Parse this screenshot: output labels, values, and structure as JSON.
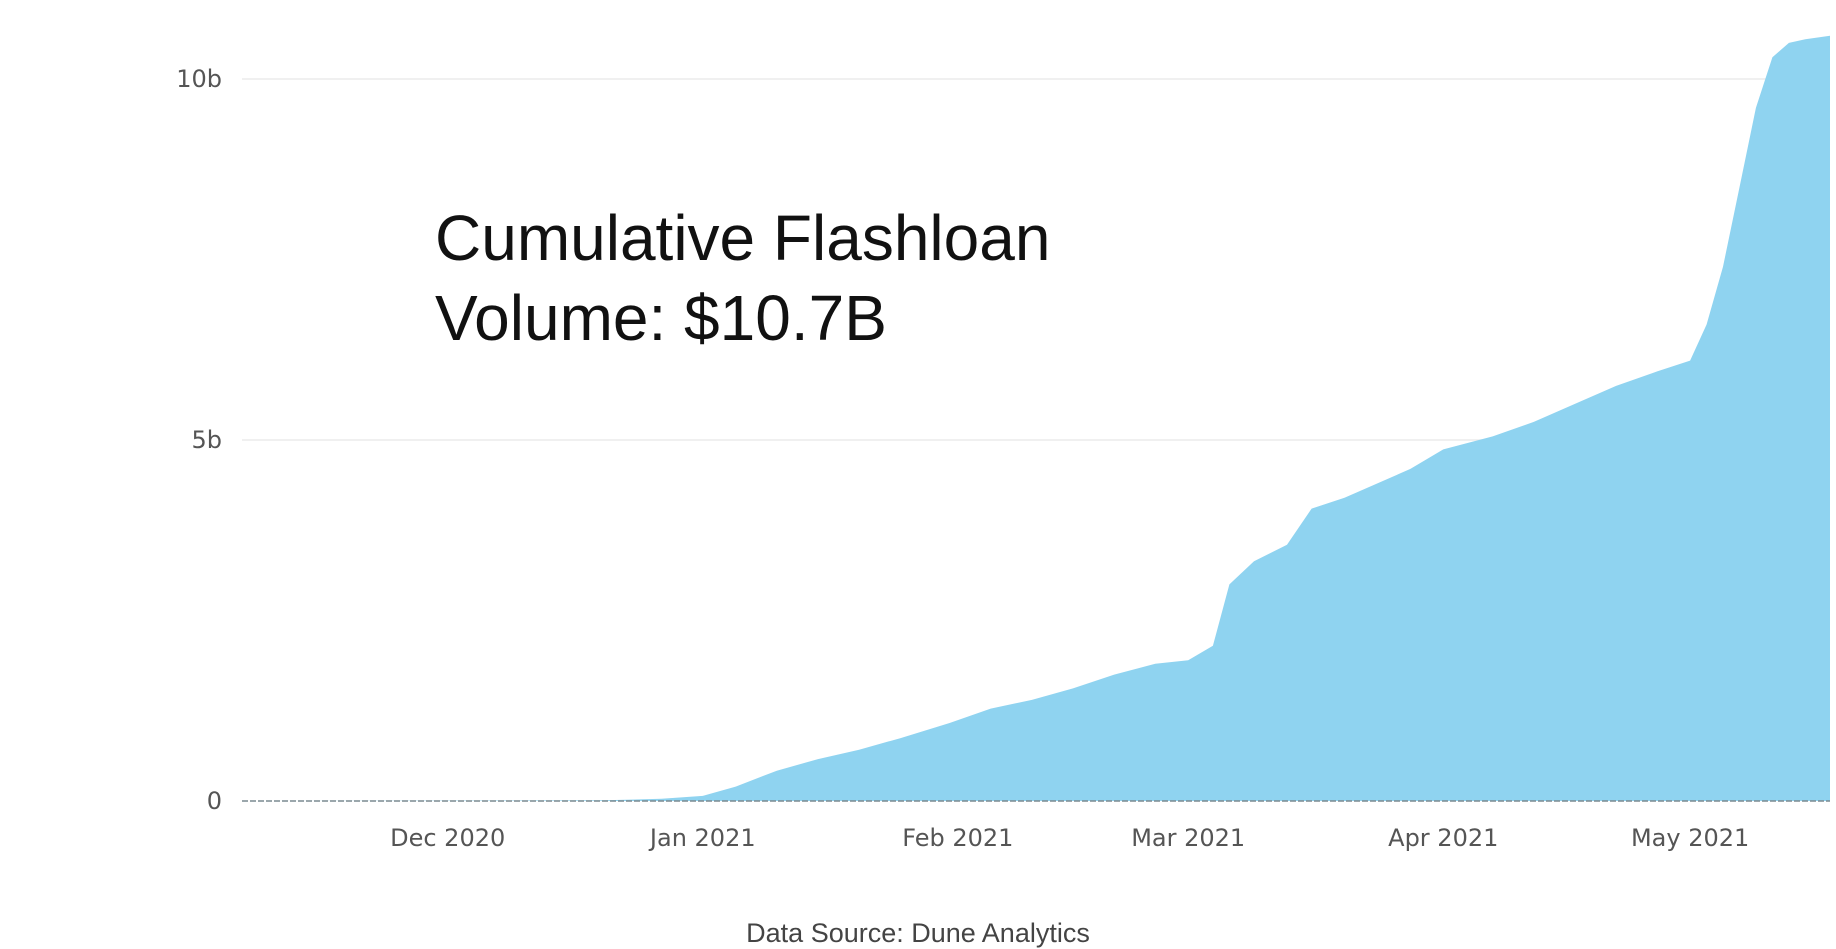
{
  "chart_data": {
    "type": "area",
    "title": "",
    "xlabel": "",
    "ylabel": "",
    "annotation_lines": [
      "Cumulative Flashloan",
      "Volume: $10.7B"
    ],
    "source_note": "Data Source: Dune Analytics",
    "x_ticks": [
      {
        "date": "2020-12-01",
        "label": "Dec 2020"
      },
      {
        "date": "2021-01-01",
        "label": "Jan 2021"
      },
      {
        "date": "2021-02-01",
        "label": "Feb 2021"
      },
      {
        "date": "2021-03-01",
        "label": "Mar 2021"
      },
      {
        "date": "2021-04-01",
        "label": "Apr 2021"
      },
      {
        "date": "2021-05-01",
        "label": "May 2021"
      }
    ],
    "y_ticks": [
      {
        "value": 0,
        "label": "0"
      },
      {
        "value": 5000000000,
        "label": "5b"
      },
      {
        "value": 10000000000,
        "label": "10b"
      }
    ],
    "xlim": [
      "2020-11-06",
      "2021-05-18"
    ],
    "ylim": [
      0,
      10000000000
    ],
    "grid": true,
    "fill_color": "#8fd3f0",
    "series": [
      {
        "points": [
          {
            "x": "2020-11-06",
            "y": 0
          },
          {
            "x": "2020-12-20",
            "y": 10000000
          },
          {
            "x": "2020-12-27",
            "y": 30000000
          },
          {
            "x": "2021-01-01",
            "y": 70000000
          },
          {
            "x": "2021-01-05",
            "y": 200000000
          },
          {
            "x": "2021-01-10",
            "y": 420000000
          },
          {
            "x": "2021-01-15",
            "y": 580000000
          },
          {
            "x": "2021-01-20",
            "y": 710000000
          },
          {
            "x": "2021-01-25",
            "y": 870000000
          },
          {
            "x": "2021-01-31",
            "y": 1080000000
          },
          {
            "x": "2021-02-05",
            "y": 1280000000
          },
          {
            "x": "2021-02-10",
            "y": 1400000000
          },
          {
            "x": "2021-02-15",
            "y": 1560000000
          },
          {
            "x": "2021-02-20",
            "y": 1750000000
          },
          {
            "x": "2021-02-25",
            "y": 1900000000
          },
          {
            "x": "2021-03-01",
            "y": 1950000000
          },
          {
            "x": "2021-03-04",
            "y": 2150000000
          },
          {
            "x": "2021-03-06",
            "y": 3000000000
          },
          {
            "x": "2021-03-09",
            "y": 3320000000
          },
          {
            "x": "2021-03-13",
            "y": 3550000000
          },
          {
            "x": "2021-03-16",
            "y": 4050000000
          },
          {
            "x": "2021-03-20",
            "y": 4200000000
          },
          {
            "x": "2021-03-25",
            "y": 4450000000
          },
          {
            "x": "2021-03-28",
            "y": 4600000000
          },
          {
            "x": "2021-04-01",
            "y": 4870000000
          },
          {
            "x": "2021-04-07",
            "y": 5050000000
          },
          {
            "x": "2021-04-12",
            "y": 5250000000
          },
          {
            "x": "2021-04-17",
            "y": 5500000000
          },
          {
            "x": "2021-04-22",
            "y": 5750000000
          },
          {
            "x": "2021-04-27",
            "y": 5950000000
          },
          {
            "x": "2021-05-01",
            "y": 6100000000
          },
          {
            "x": "2021-05-03",
            "y": 6600000000
          },
          {
            "x": "2021-05-05",
            "y": 7400000000
          },
          {
            "x": "2021-05-07",
            "y": 8500000000
          },
          {
            "x": "2021-05-09",
            "y": 9600000000
          },
          {
            "x": "2021-05-11",
            "y": 10300000000
          },
          {
            "x": "2021-05-13",
            "y": 10500000000
          },
          {
            "x": "2021-05-15",
            "y": 10550000000
          },
          {
            "x": "2021-05-18",
            "y": 10600000000
          }
        ]
      }
    ]
  }
}
